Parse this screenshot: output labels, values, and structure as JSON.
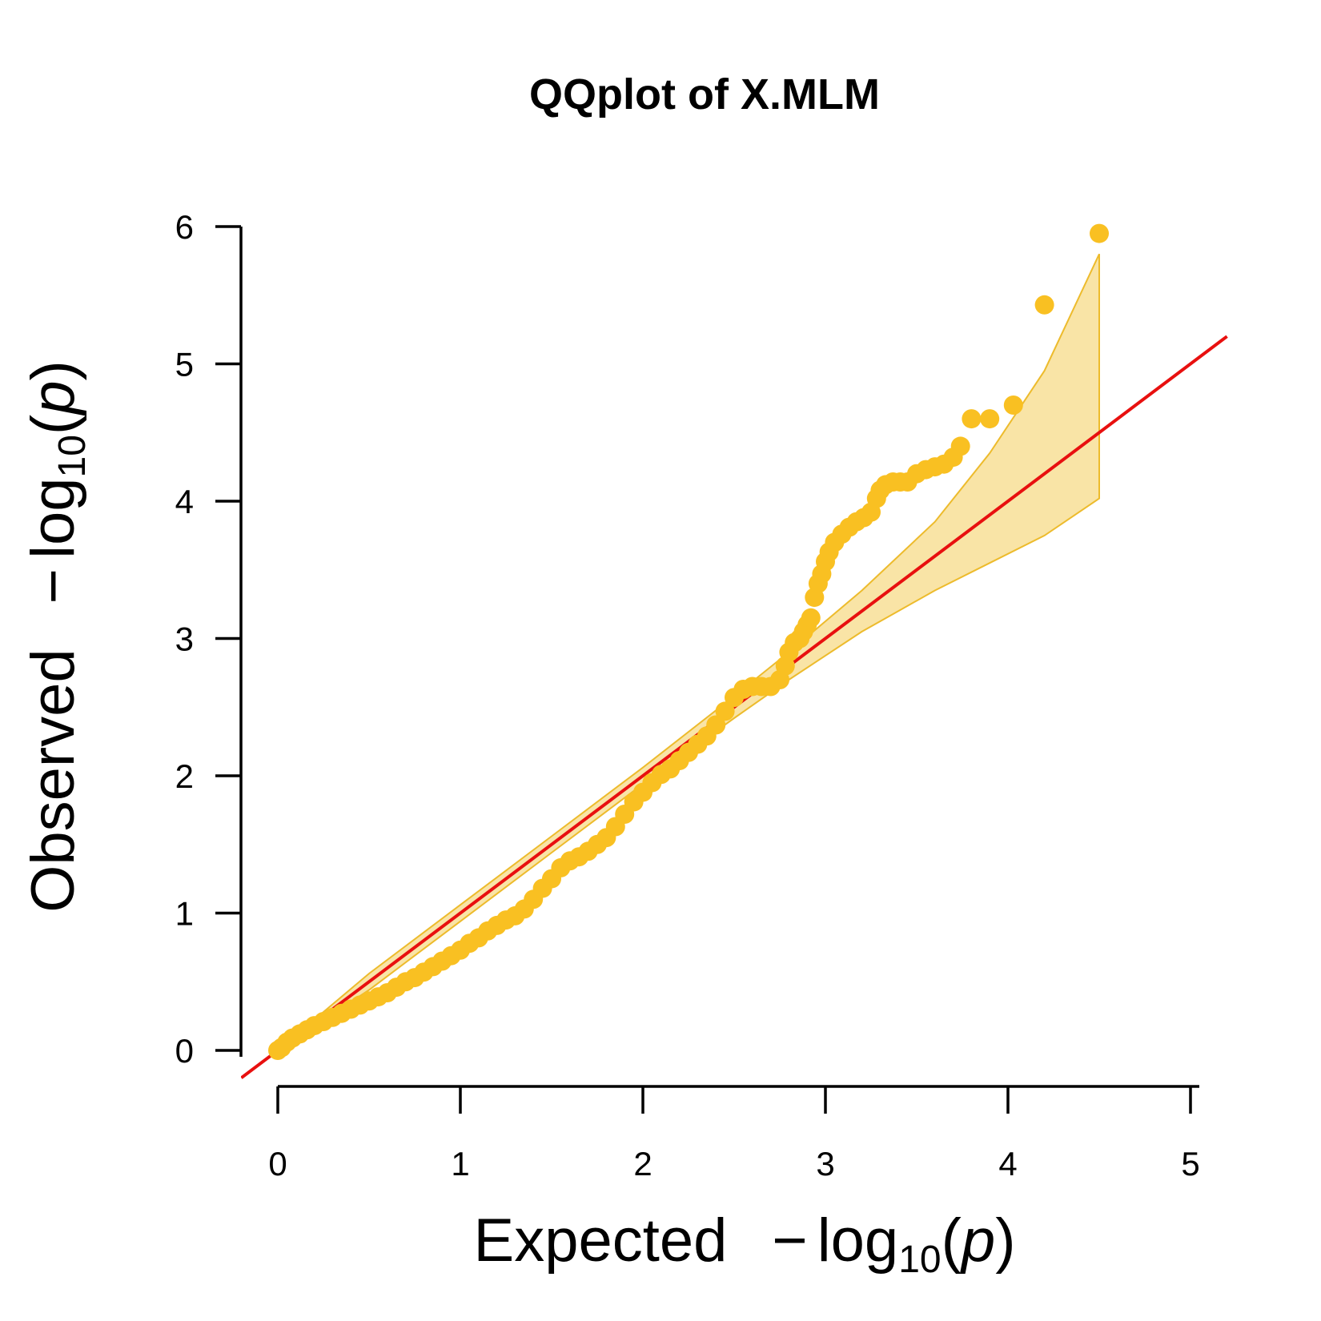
{
  "chart_data": {
    "type": "scatter",
    "title": "QQplot of X.MLM",
    "xlabel": {
      "prefix": "Expected",
      "minus": "−",
      "log": "log",
      "sub": "10",
      "open": "(",
      "var": "p",
      "close": ")"
    },
    "ylabel": {
      "prefix": "Observed",
      "minus": "−",
      "log": "log",
      "sub": "10",
      "open": "(",
      "var": "p",
      "close": ")"
    },
    "xlim": [
      0,
      5
    ],
    "ylim": [
      0,
      6
    ],
    "x_ticks": [
      "0",
      "1",
      "2",
      "3",
      "4",
      "5"
    ],
    "y_ticks": [
      "0",
      "1",
      "2",
      "3",
      "4",
      "5",
      "6"
    ],
    "grid": false,
    "legend": "none",
    "colors": {
      "points": "#F9C022",
      "reference_line": "#E8100F",
      "confidence_band_fill": "#F9E4A6",
      "confidence_band_edge": "#EDBB2C",
      "axis": "#000000"
    },
    "reference_line": {
      "x": [
        -0.2,
        5.2
      ],
      "y": [
        -0.2,
        5.2
      ]
    },
    "confidence_band": {
      "x": [
        0,
        0.5,
        1,
        1.5,
        2,
        2.5,
        2.8,
        3.2,
        3.6,
        3.9,
        4.2,
        4.5
      ],
      "upper": [
        0,
        0.56,
        1.06,
        1.56,
        2.06,
        2.58,
        2.9,
        3.35,
        3.85,
        4.35,
        4.95,
        5.8
      ],
      "lower": [
        0,
        0.44,
        0.94,
        1.44,
        1.94,
        2.42,
        2.7,
        3.05,
        3.35,
        3.55,
        3.75,
        4.02
      ]
    },
    "series": [
      {
        "points": [
          [
            0.0,
            0.0
          ],
          [
            0.02,
            0.02
          ],
          [
            0.05,
            0.06
          ],
          [
            0.08,
            0.09
          ],
          [
            0.12,
            0.12
          ],
          [
            0.16,
            0.15
          ],
          [
            0.2,
            0.18
          ],
          [
            0.25,
            0.21
          ],
          [
            0.3,
            0.24
          ],
          [
            0.35,
            0.27
          ],
          [
            0.4,
            0.3
          ],
          [
            0.45,
            0.33
          ],
          [
            0.5,
            0.36
          ],
          [
            0.55,
            0.39
          ],
          [
            0.6,
            0.42
          ],
          [
            0.65,
            0.46
          ],
          [
            0.7,
            0.5
          ],
          [
            0.75,
            0.53
          ],
          [
            0.8,
            0.57
          ],
          [
            0.85,
            0.61
          ],
          [
            0.9,
            0.65
          ],
          [
            0.95,
            0.69
          ],
          [
            1.0,
            0.73
          ],
          [
            1.05,
            0.78
          ],
          [
            1.1,
            0.82
          ],
          [
            1.15,
            0.87
          ],
          [
            1.2,
            0.91
          ],
          [
            1.25,
            0.95
          ],
          [
            1.3,
            0.98
          ],
          [
            1.35,
            1.03
          ],
          [
            1.4,
            1.1
          ],
          [
            1.45,
            1.18
          ],
          [
            1.5,
            1.25
          ],
          [
            1.55,
            1.33
          ],
          [
            1.6,
            1.38
          ],
          [
            1.65,
            1.41
          ],
          [
            1.7,
            1.45
          ],
          [
            1.75,
            1.5
          ],
          [
            1.8,
            1.55
          ],
          [
            1.85,
            1.63
          ],
          [
            1.9,
            1.72
          ],
          [
            1.95,
            1.81
          ],
          [
            2.0,
            1.88
          ],
          [
            2.05,
            1.95
          ],
          [
            2.1,
            2.01
          ],
          [
            2.15,
            2.05
          ],
          [
            2.2,
            2.11
          ],
          [
            2.25,
            2.17
          ],
          [
            2.3,
            2.23
          ],
          [
            2.35,
            2.29
          ],
          [
            2.4,
            2.37
          ],
          [
            2.45,
            2.47
          ],
          [
            2.5,
            2.57
          ],
          [
            2.55,
            2.63
          ],
          [
            2.6,
            2.65
          ],
          [
            2.65,
            2.65
          ],
          [
            2.7,
            2.65
          ],
          [
            2.75,
            2.7
          ],
          [
            2.78,
            2.8
          ],
          [
            2.8,
            2.9
          ],
          [
            2.83,
            2.97
          ],
          [
            2.86,
            3.0
          ],
          [
            2.88,
            3.05
          ],
          [
            2.9,
            3.1
          ],
          [
            2.92,
            3.15
          ],
          [
            2.94,
            3.3
          ],
          [
            2.96,
            3.4
          ],
          [
            2.98,
            3.47
          ],
          [
            3.0,
            3.56
          ],
          [
            3.02,
            3.63
          ],
          [
            3.05,
            3.7
          ],
          [
            3.09,
            3.76
          ],
          [
            3.13,
            3.81
          ],
          [
            3.17,
            3.85
          ],
          [
            3.21,
            3.88
          ],
          [
            3.25,
            3.92
          ],
          [
            3.28,
            4.02
          ],
          [
            3.3,
            4.08
          ],
          [
            3.33,
            4.12
          ],
          [
            3.37,
            4.14
          ],
          [
            3.41,
            4.14
          ],
          [
            3.45,
            4.14
          ],
          [
            3.5,
            4.2
          ],
          [
            3.55,
            4.23
          ],
          [
            3.6,
            4.25
          ],
          [
            3.65,
            4.27
          ],
          [
            3.7,
            4.32
          ],
          [
            3.74,
            4.4
          ],
          [
            3.8,
            4.6
          ],
          [
            3.9,
            4.6
          ],
          [
            4.03,
            4.7
          ],
          [
            4.2,
            5.43
          ],
          [
            4.5,
            5.95
          ]
        ]
      }
    ]
  }
}
